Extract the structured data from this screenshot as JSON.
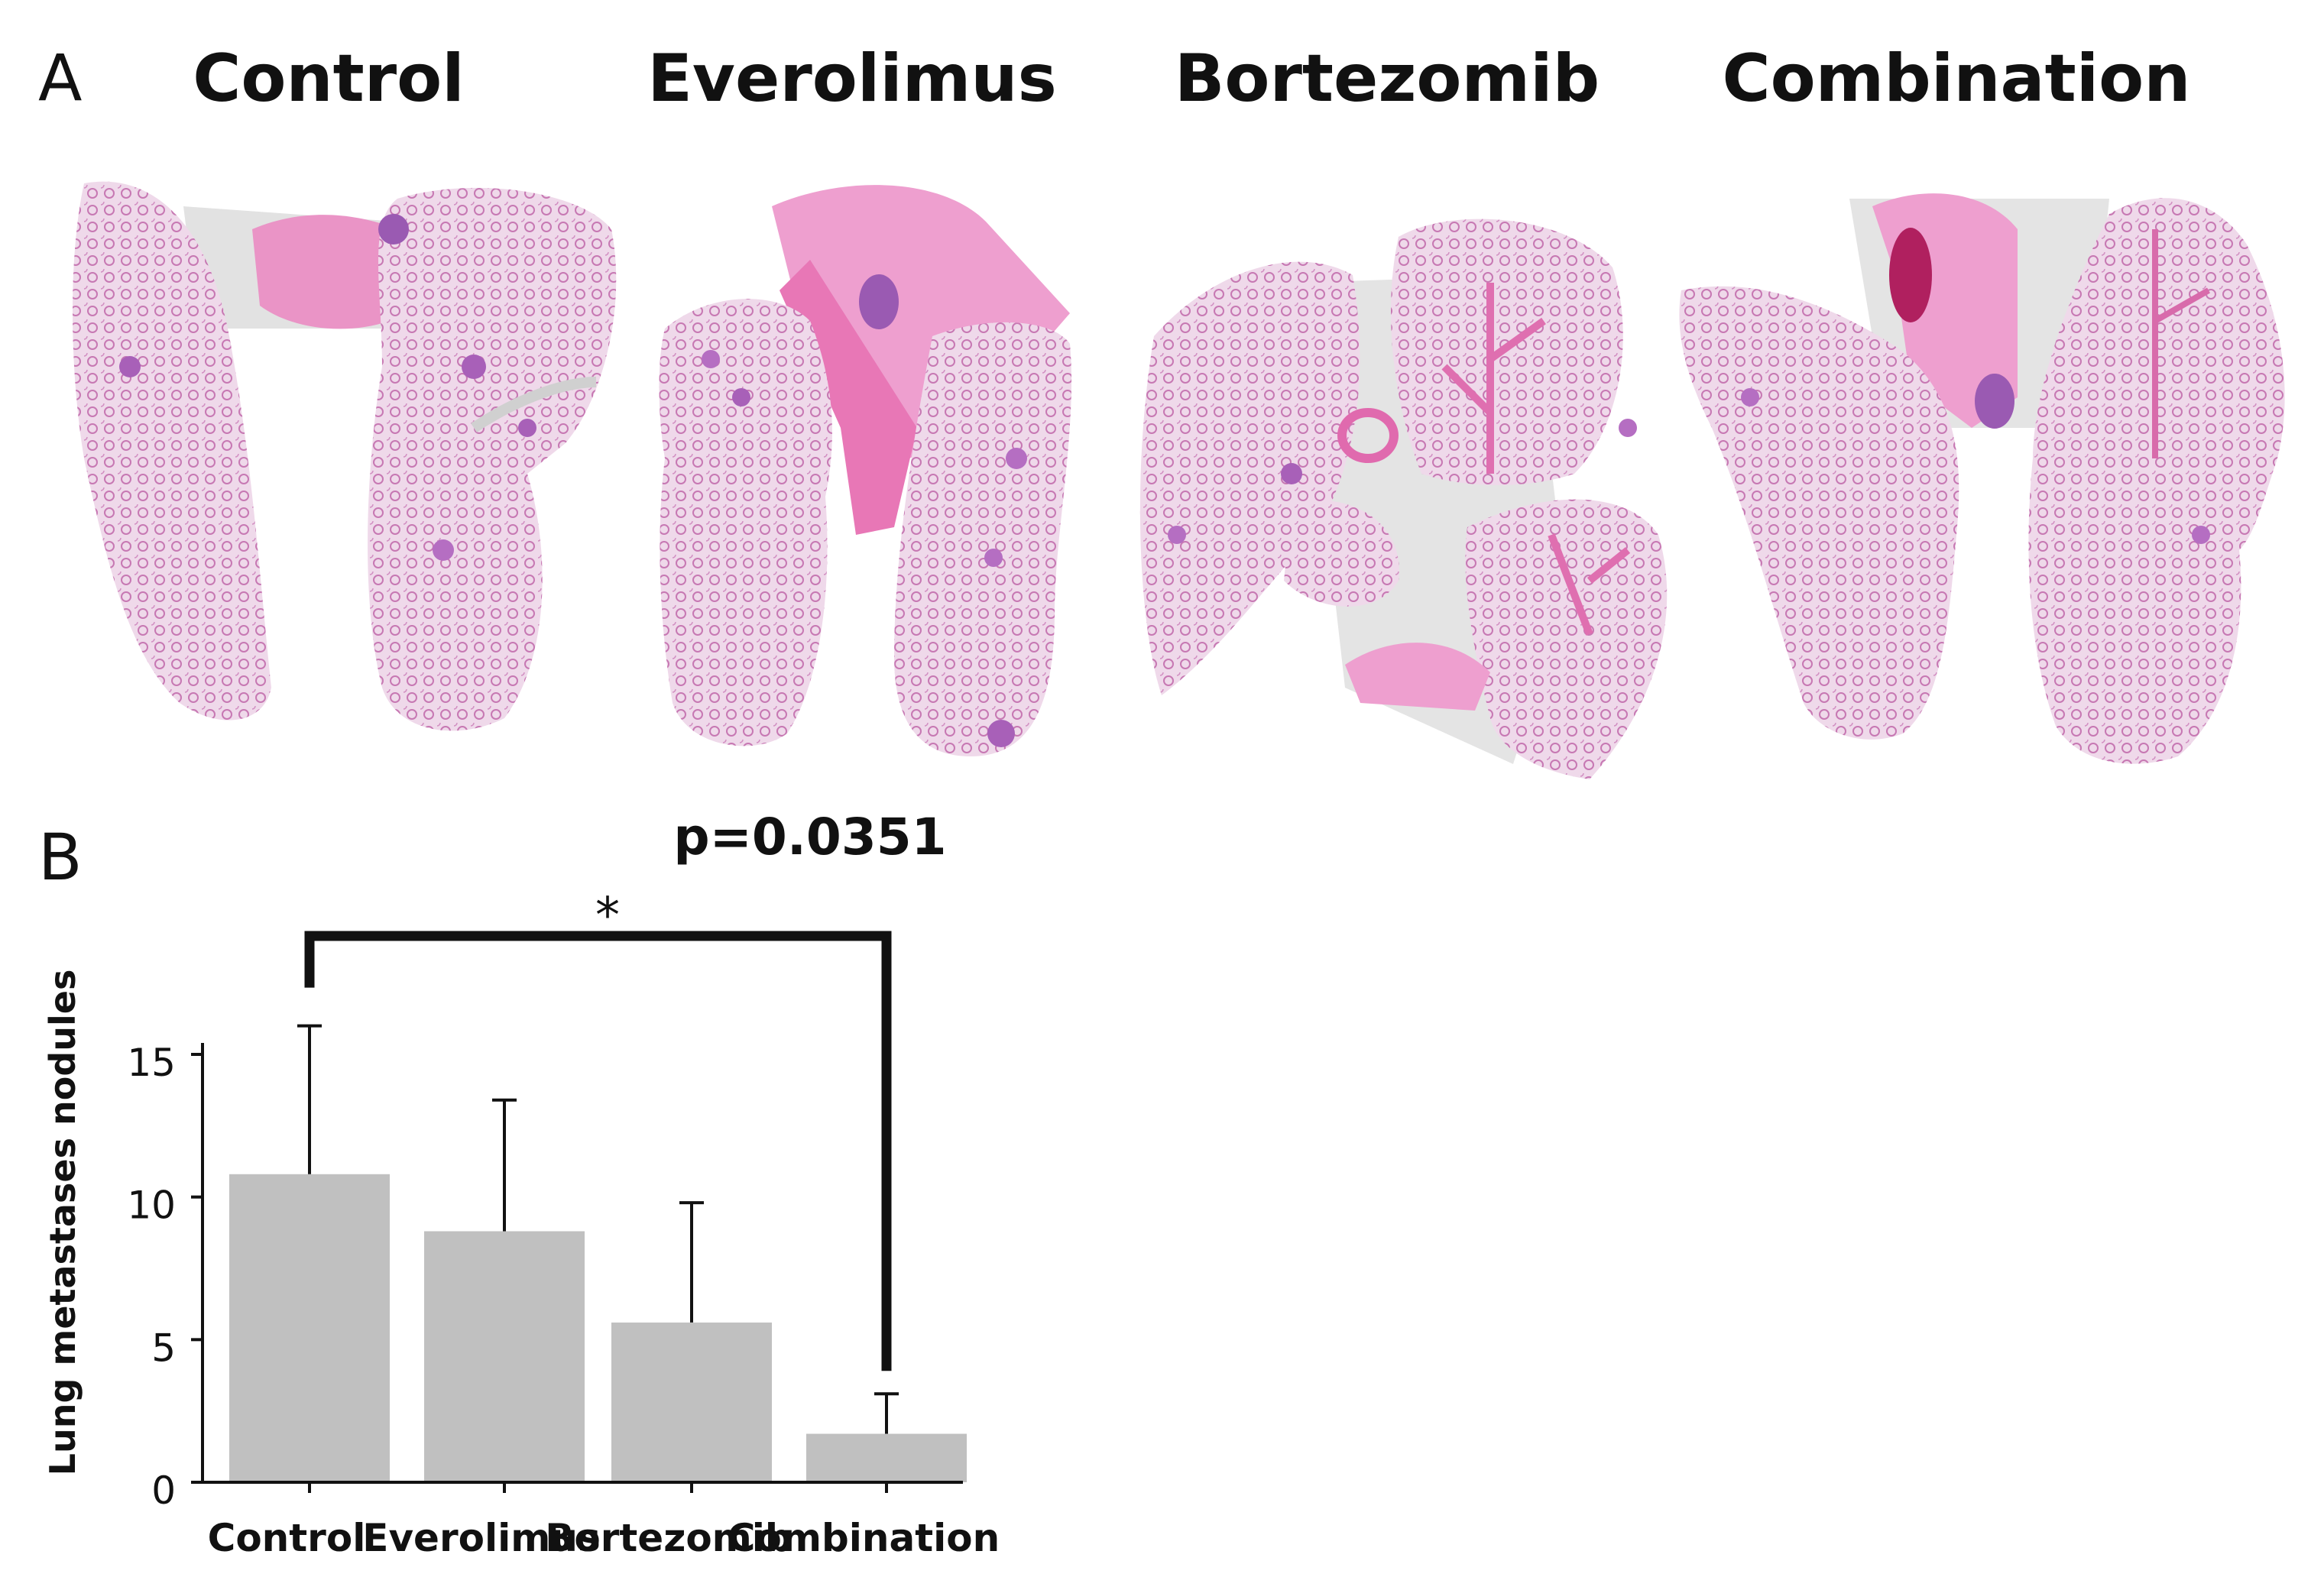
{
  "panel_a": {
    "letter": "A",
    "groups": [
      "Control",
      "Everolimus",
      "Bortezomib",
      "Combination"
    ]
  },
  "panel_b": {
    "letter": "B"
  },
  "colors": {
    "bar": "#c0c0c0",
    "tissue_pink": "#d98bc6",
    "tissue_light": "#ecd2e6",
    "stroma": "#e0e0e0"
  },
  "chart_data": {
    "type": "bar",
    "categories": [
      "Control",
      "Everolimus",
      "Bortezomib",
      "Combination"
    ],
    "values": [
      10.8,
      8.8,
      5.6,
      1.7
    ],
    "error": [
      5.2,
      4.6,
      4.2,
      1.4
    ],
    "ylabel": "Lung metastases nodules",
    "ylim": [
      0,
      15
    ],
    "yticks": [
      0,
      5,
      10,
      15
    ],
    "grid": false,
    "significance": {
      "from": "Control",
      "to": "Combination",
      "symbol": "*",
      "label": "p=0.0351"
    }
  }
}
